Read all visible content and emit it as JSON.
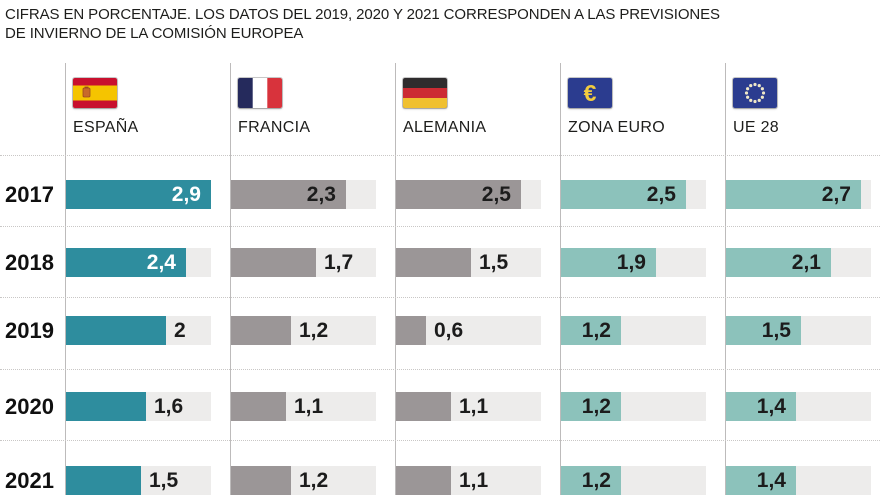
{
  "chart_data": {
    "type": "bar",
    "orientation": "horizontal",
    "unit": "%",
    "note_lines": [
      "CIFRAS EN PORCENTAJE. LOS DATOS DEL 2019, 2020 Y 2021 CORRESPONDEN A LAS PREVISIONES",
      "DE INVIERNO DE LA COMISIÓN EUROPEA"
    ],
    "categories": [
      "2017",
      "2018",
      "2019",
      "2020",
      "2021"
    ],
    "value_range": [
      0,
      2.9
    ],
    "grid": "dotted-row-separators",
    "legend_position": "column-headers-top",
    "series": [
      {
        "name": "ESPAÑA",
        "flag": "spain-flag-icon",
        "bar_color": "#2e8d9e",
        "label_color_inside": "#ffffff",
        "values": [
          2.9,
          2.4,
          2,
          1.6,
          1.5
        ],
        "labels": [
          "2,9",
          "2,4",
          "2",
          "1,6",
          "1,5"
        ],
        "label_inside": [
          true,
          true,
          false,
          false,
          false
        ]
      },
      {
        "name": "FRANCIA",
        "flag": "france-flag-icon",
        "bar_color": "#9b9697",
        "label_color_inside": "#1c1c1c",
        "values": [
          2.3,
          1.7,
          1.2,
          1.1,
          1.2
        ],
        "labels": [
          "2,3",
          "1,7",
          "1,2",
          "1,1",
          "1,2"
        ],
        "label_inside": [
          true,
          false,
          false,
          false,
          false
        ]
      },
      {
        "name": "ALEMANIA",
        "flag": "germany-flag-icon",
        "bar_color": "#9b9697",
        "label_color_inside": "#1c1c1c",
        "values": [
          2.5,
          1.5,
          0.6,
          1.1,
          1.1
        ],
        "labels": [
          "2,5",
          "1,5",
          "0,6",
          "1,1",
          "1,1"
        ],
        "label_inside": [
          true,
          false,
          false,
          false,
          false
        ]
      },
      {
        "name": "ZONA EURO",
        "flag": "euro-flag-icon",
        "bar_color": "#8cc2bb",
        "label_color_inside": "#1c1c1c",
        "values": [
          2.5,
          1.9,
          1.2,
          1.2,
          1.2
        ],
        "labels": [
          "2,5",
          "1,9",
          "1,2",
          "1,2",
          "1,2"
        ],
        "label_inside": [
          true,
          true,
          true,
          true,
          true
        ]
      },
      {
        "name": "UE 28",
        "flag": "eu-flag-icon",
        "bar_color": "#8cc2bb",
        "label_color_inside": "#1c1c1c",
        "values": [
          2.7,
          2.1,
          1.5,
          1.4,
          1.4
        ],
        "labels": [
          "2,7",
          "2,1",
          "1,5",
          "1,4",
          "1,4"
        ],
        "label_inside": [
          true,
          true,
          true,
          true,
          true
        ]
      }
    ],
    "colors": {
      "track": "#edeceb",
      "row_separator": "#c9c7c6",
      "column_divider": "#bdbbbb",
      "text": "#1c1c1c"
    }
  }
}
